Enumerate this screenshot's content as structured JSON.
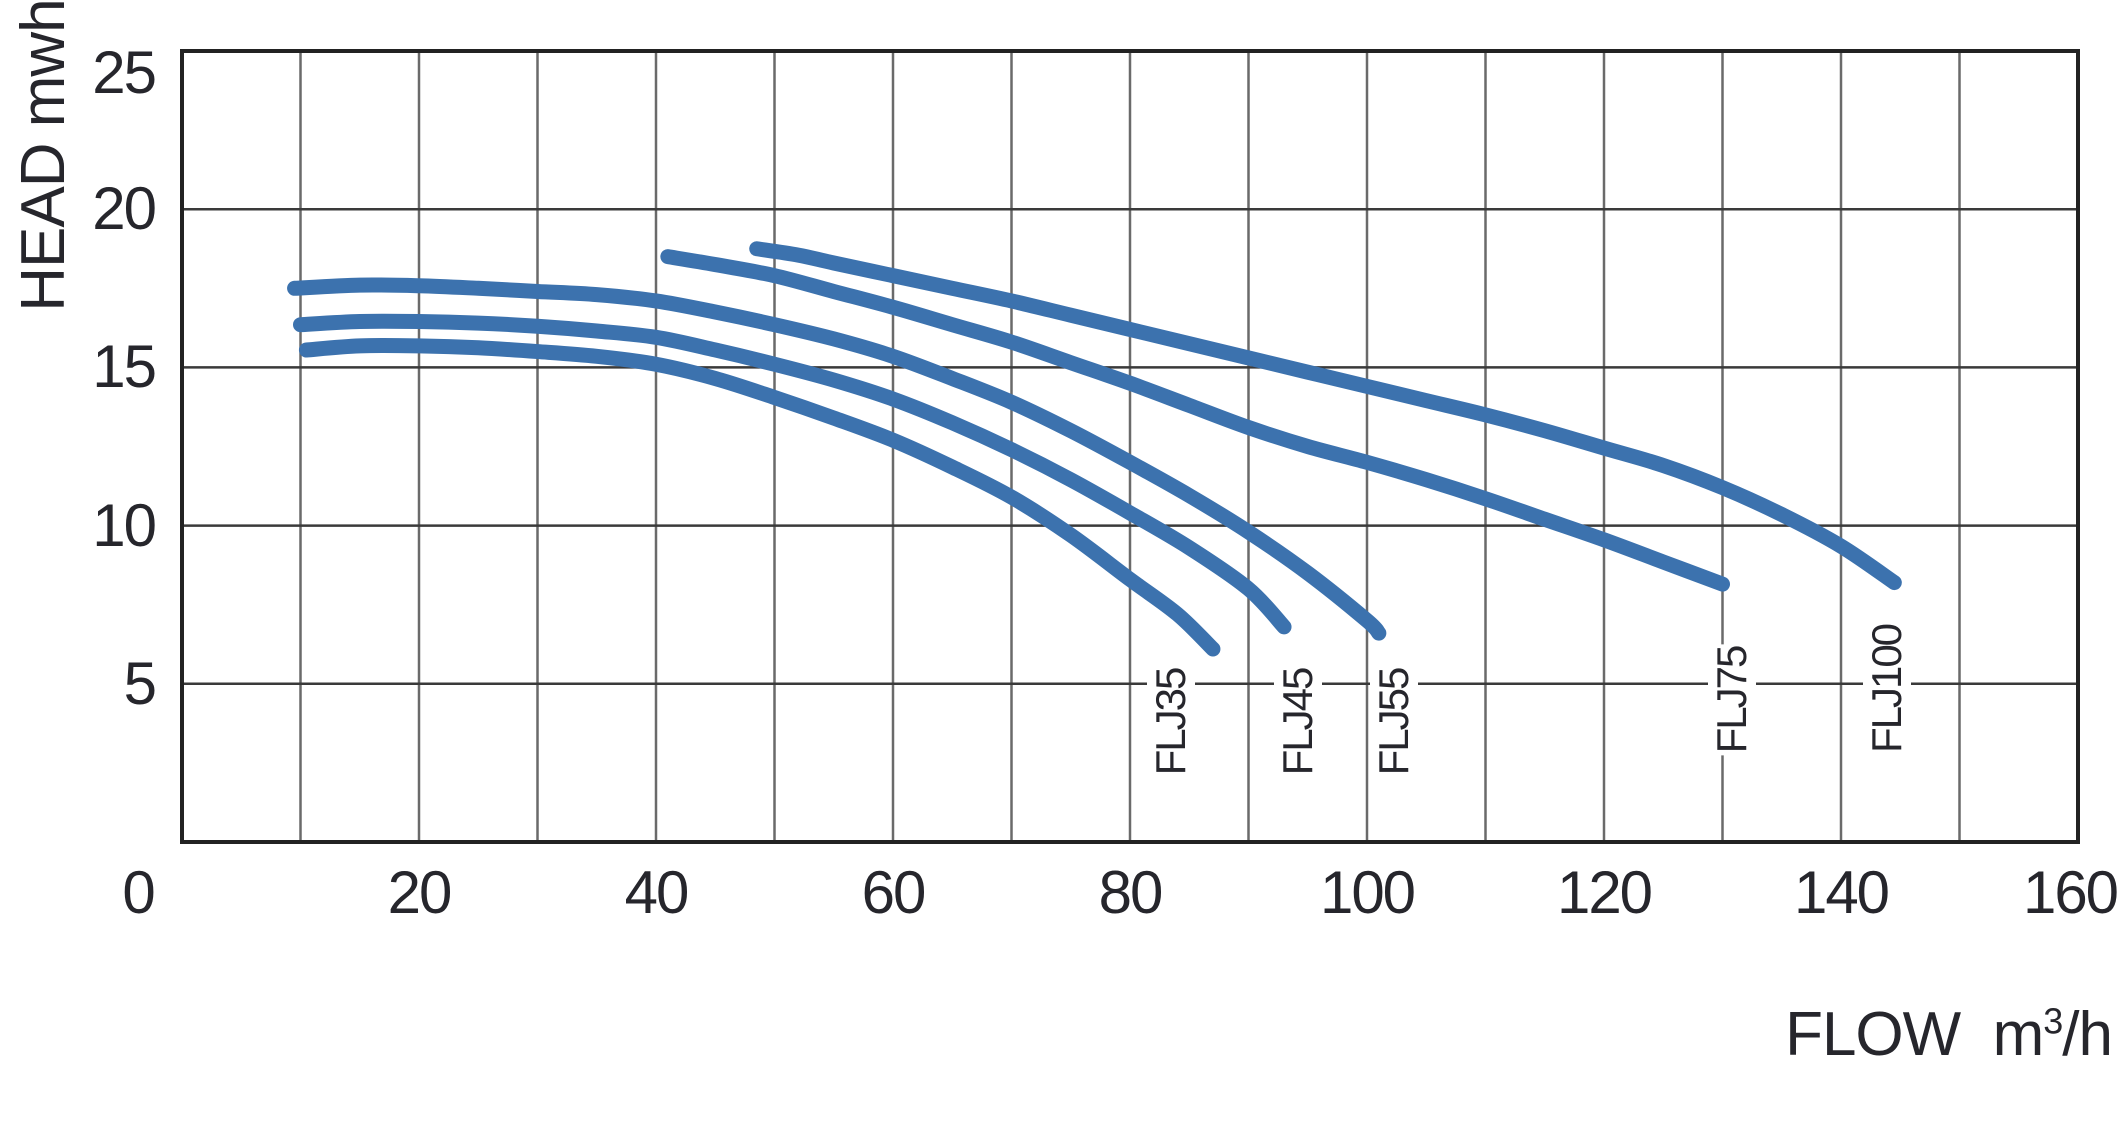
{
  "page": {
    "background": "#ffffff",
    "text_color": "#26262c"
  },
  "chart_data": {
    "type": "line",
    "title": "",
    "x_axis": {
      "title_prefix": "FLOW  m",
      "title_sup": "3",
      "title_suffix": "/h",
      "min": 0,
      "max": 160,
      "grid_step": 10,
      "ticks": [
        0,
        20,
        40,
        60,
        80,
        100,
        120,
        140,
        160
      ]
    },
    "y_axis": {
      "title": "HEAD mwh",
      "min": 0,
      "max": 25,
      "grid_step": 5,
      "ticks": [
        5,
        10,
        15,
        20,
        25
      ]
    },
    "grid": "on",
    "legend_position": "curve-end-labels",
    "line_color": "#3c72ae",
    "grid_color_vertical": "#6a6a6a",
    "grid_color_horizontal": "#3a3a3a",
    "border_color": "#222222",
    "series": [
      {
        "name": "FLJ35",
        "label_pos": {
          "flow": 83.5,
          "head": 3.8
        },
        "points": [
          [
            10.5,
            15.55
          ],
          [
            15,
            15.68
          ],
          [
            20,
            15.68
          ],
          [
            25,
            15.62
          ],
          [
            30,
            15.5
          ],
          [
            35,
            15.35
          ],
          [
            40,
            15.1
          ],
          [
            45,
            14.65
          ],
          [
            50,
            14.05
          ],
          [
            55,
            13.4
          ],
          [
            60,
            12.7
          ],
          [
            65,
            11.85
          ],
          [
            70,
            10.9
          ],
          [
            75,
            9.7
          ],
          [
            80,
            8.3
          ],
          [
            84,
            7.2
          ],
          [
            87,
            6.1
          ]
        ]
      },
      {
        "name": "FLJ45",
        "label_pos": {
          "flow": 94.2,
          "head": 3.8
        },
        "points": [
          [
            10,
            16.35
          ],
          [
            15,
            16.45
          ],
          [
            20,
            16.45
          ],
          [
            25,
            16.4
          ],
          [
            30,
            16.3
          ],
          [
            35,
            16.15
          ],
          [
            40,
            15.95
          ],
          [
            45,
            15.55
          ],
          [
            50,
            15.1
          ],
          [
            55,
            14.6
          ],
          [
            60,
            14.0
          ],
          [
            65,
            13.25
          ],
          [
            70,
            12.4
          ],
          [
            75,
            11.45
          ],
          [
            80,
            10.4
          ],
          [
            85,
            9.3
          ],
          [
            90,
            8.0
          ],
          [
            93,
            6.8
          ]
        ]
      },
      {
        "name": "FLJ55",
        "label_pos": {
          "flow": 102.3,
          "head": 3.8
        },
        "points": [
          [
            9.5,
            17.5
          ],
          [
            15,
            17.6
          ],
          [
            20,
            17.58
          ],
          [
            25,
            17.5
          ],
          [
            30,
            17.4
          ],
          [
            35,
            17.3
          ],
          [
            40,
            17.1
          ],
          [
            45,
            16.75
          ],
          [
            50,
            16.35
          ],
          [
            55,
            15.9
          ],
          [
            60,
            15.35
          ],
          [
            65,
            14.65
          ],
          [
            70,
            13.9
          ],
          [
            75,
            13.0
          ],
          [
            80,
            12.0
          ],
          [
            85,
            10.95
          ],
          [
            90,
            9.8
          ],
          [
            95,
            8.5
          ],
          [
            100,
            7.0
          ],
          [
            101,
            6.6
          ]
        ]
      },
      {
        "name": "FLJ75",
        "label_pos": {
          "flow": 130.8,
          "head": 4.5
        },
        "points": [
          [
            41,
            18.5
          ],
          [
            45,
            18.25
          ],
          [
            50,
            17.9
          ],
          [
            55,
            17.4
          ],
          [
            60,
            16.9
          ],
          [
            65,
            16.35
          ],
          [
            70,
            15.8
          ],
          [
            75,
            15.15
          ],
          [
            80,
            14.5
          ],
          [
            85,
            13.8
          ],
          [
            90,
            13.1
          ],
          [
            95,
            12.5
          ],
          [
            100,
            12.0
          ],
          [
            105,
            11.45
          ],
          [
            110,
            10.85
          ],
          [
            115,
            10.2
          ],
          [
            120,
            9.55
          ],
          [
            125,
            8.85
          ],
          [
            130,
            8.15
          ]
        ]
      },
      {
        "name": "FLJ100",
        "label_pos": {
          "flow": 143.9,
          "head": 4.85
        },
        "points": [
          [
            48.5,
            18.75
          ],
          [
            52,
            18.55
          ],
          [
            55,
            18.3
          ],
          [
            60,
            17.9
          ],
          [
            65,
            17.5
          ],
          [
            70,
            17.1
          ],
          [
            75,
            16.65
          ],
          [
            80,
            16.2
          ],
          [
            85,
            15.75
          ],
          [
            90,
            15.3
          ],
          [
            95,
            14.85
          ],
          [
            100,
            14.4
          ],
          [
            105,
            13.95
          ],
          [
            110,
            13.5
          ],
          [
            115,
            13.0
          ],
          [
            120,
            12.45
          ],
          [
            125,
            11.9
          ],
          [
            130,
            11.2
          ],
          [
            135,
            10.35
          ],
          [
            140,
            9.35
          ],
          [
            144.5,
            8.2
          ]
        ]
      }
    ]
  }
}
